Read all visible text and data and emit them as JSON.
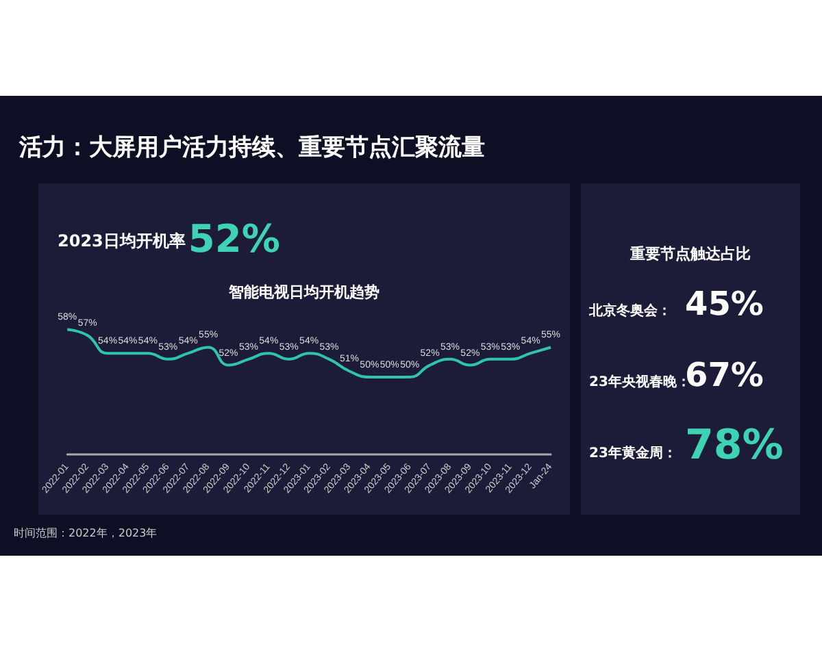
{
  "chart_data": [
    {
      "type": "line",
      "title": "活力：大屏用户活力持续、重要节点汇聚流量",
      "subtitle": "智能电视日均开机趋势",
      "annotations": [
        "2023日均开机率",
        "52%",
        "时间范围：2022年，2023年"
      ],
      "categories": [
        "2022-01",
        "2022-02",
        "2022-03",
        "2022-04",
        "2022-05",
        "2022-06",
        "2022-07",
        "2022-08",
        "2022-09",
        "2022-10",
        "2022-11",
        "2022-12",
        "2023-01",
        "2023-02",
        "2023-03",
        "2023-04",
        "2023-05",
        "2023-06",
        "2023-07",
        "2023-08",
        "2023-09",
        "2023-10",
        "2023-11",
        "2023-12",
        "Jan-24"
      ],
      "series": [
        {
          "color": "#2ec4b0",
          "values": [
            58,
            57,
            54,
            54,
            54,
            53,
            54,
            55,
            52,
            53,
            54,
            53,
            54,
            53,
            51,
            50,
            50,
            50,
            52,
            53,
            52,
            53,
            53,
            54,
            55
          ],
          "value_labels": [
            "58%",
            "57%",
            "54%",
            "54%",
            "54%",
            "53%",
            "54%",
            "55%",
            "52%",
            "53%",
            "54%",
            "53%",
            "54%",
            "53%",
            "51%",
            "50%",
            "50%",
            "50%",
            "52%",
            "53%",
            "52%",
            "53%",
            "53%",
            "54%",
            "55%"
          ]
        }
      ],
      "marker": "none",
      "grid": false,
      "tick_labels": "x"
    },
    {
      "type": "other",
      "title": "重要节点触达占比",
      "annotations": [
        "北京冬奥会：",
        "45%",
        "23年央视春晚：",
        "67%",
        "23年黄金周：",
        "78%"
      ]
    }
  ]
}
